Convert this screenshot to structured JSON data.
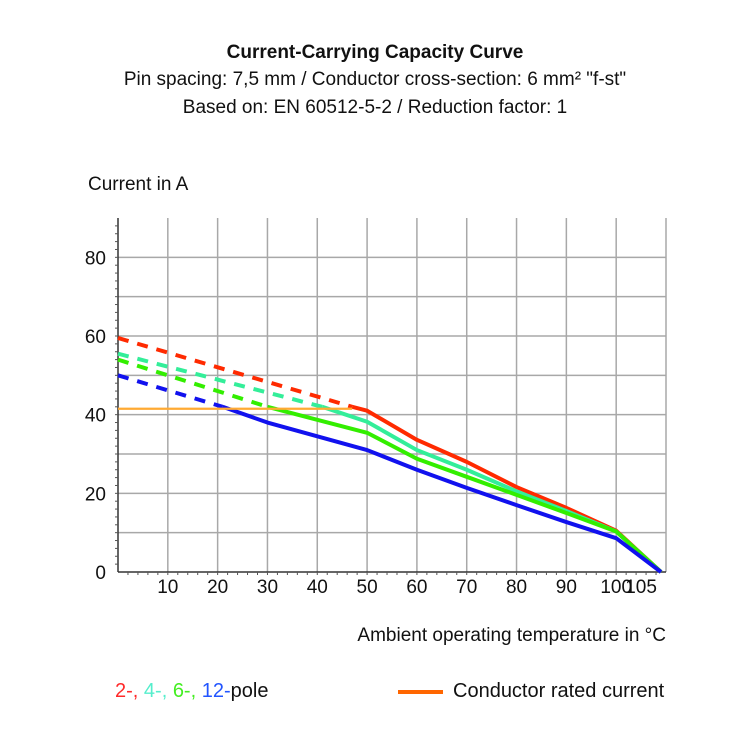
{
  "chart_data": {
    "type": "line",
    "title": "Current-Carrying Capacity Curve",
    "subtitle_lines": [
      "Pin spacing: 7,5 mm / Conductor cross-section: 6 mm² \"f-st\"",
      "Based on: EN 60512-5-2 / Reduction factor: 1"
    ],
    "ylabel": "Current in A",
    "xlabel": "Ambient operating temperature in °C",
    "xlim": [
      0,
      110
    ],
    "ylim": [
      0,
      90
    ],
    "x_ticks": [
      10,
      20,
      30,
      40,
      50,
      60,
      70,
      80,
      90,
      100,
      105
    ],
    "y_ticks": [
      0,
      20,
      40,
      60,
      80
    ],
    "grid": true,
    "series": [
      {
        "key": "2-pole",
        "color": "#ff2a00",
        "dashed_until": 47,
        "x": [
          0,
          47,
          50,
          60,
          70,
          80,
          90,
          100,
          109
        ],
        "y": [
          59.5,
          42,
          41,
          33.6,
          28,
          21.6,
          16.3,
          10.5,
          0
        ]
      },
      {
        "key": "4-pole",
        "color": "#33ee99",
        "dashed_until": 41,
        "x": [
          0,
          41,
          50,
          60,
          70,
          80,
          90,
          100,
          109
        ],
        "y": [
          55.5,
          42,
          38.2,
          31,
          26,
          20.5,
          15.5,
          10.3,
          0
        ]
      },
      {
        "key": "6-pole",
        "color": "#33ee00",
        "dashed_until": 30,
        "x": [
          0,
          30,
          50,
          60,
          70,
          80,
          90,
          100,
          109
        ],
        "y": [
          54,
          42,
          35.4,
          28.8,
          24.2,
          19.6,
          15,
          10.3,
          0
        ]
      },
      {
        "key": "12-pole",
        "color": "#1111ee",
        "dashed_until": 21,
        "x": [
          0,
          21,
          30,
          50,
          60,
          70,
          80,
          90,
          100,
          109
        ],
        "y": [
          50,
          42,
          38,
          31,
          26,
          21.4,
          17,
          12.7,
          8.6,
          0
        ]
      },
      {
        "key": "Conductor rated current",
        "color": "#ffaa33",
        "x": [
          0,
          47
        ],
        "y": [
          41.5,
          41.5
        ]
      }
    ],
    "legend": {
      "pole_parts": [
        {
          "text": "2-,",
          "color": "#ff2a2a"
        },
        {
          "text": "4-,",
          "color": "#55eecc"
        },
        {
          "text": "6-,",
          "color": "#44ee22"
        },
        {
          "text": "12-",
          "color": "#2255ff"
        }
      ],
      "pole_suffix": "pole",
      "rated_label": "Conductor rated current",
      "rated_color": "#ff6600"
    }
  }
}
